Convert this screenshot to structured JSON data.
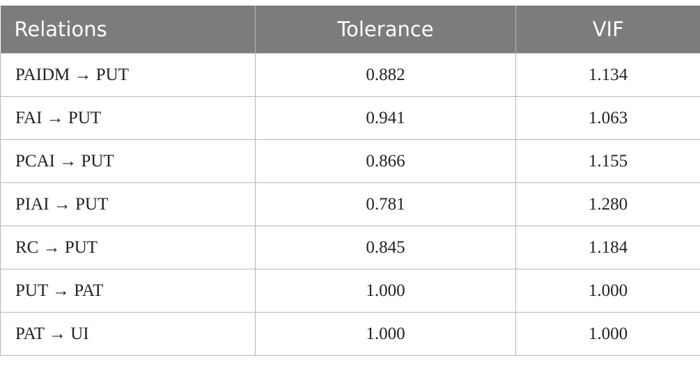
{
  "table": {
    "headers": [
      "Relations",
      "Tolerance",
      "VIF"
    ],
    "rows": [
      {
        "relation": "PAIDM → PUT",
        "tolerance": "0.882",
        "vif": "1.134"
      },
      {
        "relation": "FAI → PUT",
        "tolerance": "0.941",
        "vif": "1.063"
      },
      {
        "relation": "PCAI → PUT",
        "tolerance": "0.866",
        "vif": "1.155"
      },
      {
        "relation": "PIAI → PUT",
        "tolerance": "0.781",
        "vif": "1.280"
      },
      {
        "relation": "RC → PUT",
        "tolerance": "0.845",
        "vif": "1.184"
      },
      {
        "relation": "PUT → PAT",
        "tolerance": "1.000",
        "vif": "1.000"
      },
      {
        "relation": "PAT → UI",
        "tolerance": "1.000",
        "vif": "1.000"
      }
    ]
  },
  "colors": {
    "header_background": "#7c7c7b",
    "header_text": "#ffffff",
    "grid_line": "#b5b5b5"
  }
}
